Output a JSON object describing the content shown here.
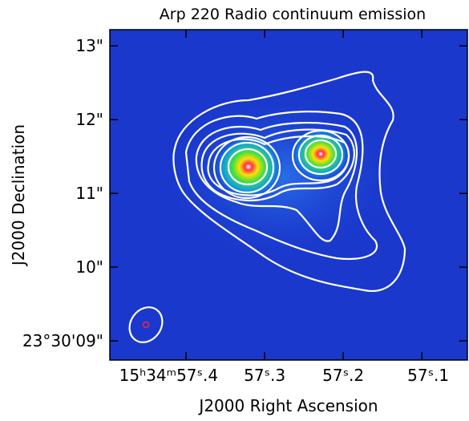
{
  "chart_data": {
    "type": "image",
    "title": "Arp 220 Radio continuum emission",
    "xlabel": "J2000 Right Ascension",
    "ylabel": "J2000 Declination",
    "xlim": [
      57.497,
      57.042
    ],
    "ylim": [
      8.74,
      13.22
    ],
    "xticks": [
      {
        "value": 57.4,
        "label": "15ʰ34ᵐ57ˢ.4"
      },
      {
        "value": 57.3,
        "label": "57ˢ.3"
      },
      {
        "value": 57.2,
        "label": "57ˢ.2"
      },
      {
        "value": 57.1,
        "label": "57ˢ.1"
      }
    ],
    "yticks": [
      {
        "value": 9,
        "label": "23°30'09\""
      },
      {
        "value": 10,
        "label": "10\""
      },
      {
        "value": 11,
        "label": "11\""
      },
      {
        "value": 12,
        "label": "12\""
      },
      {
        "value": 13,
        "label": "13\""
      }
    ]
  }
}
